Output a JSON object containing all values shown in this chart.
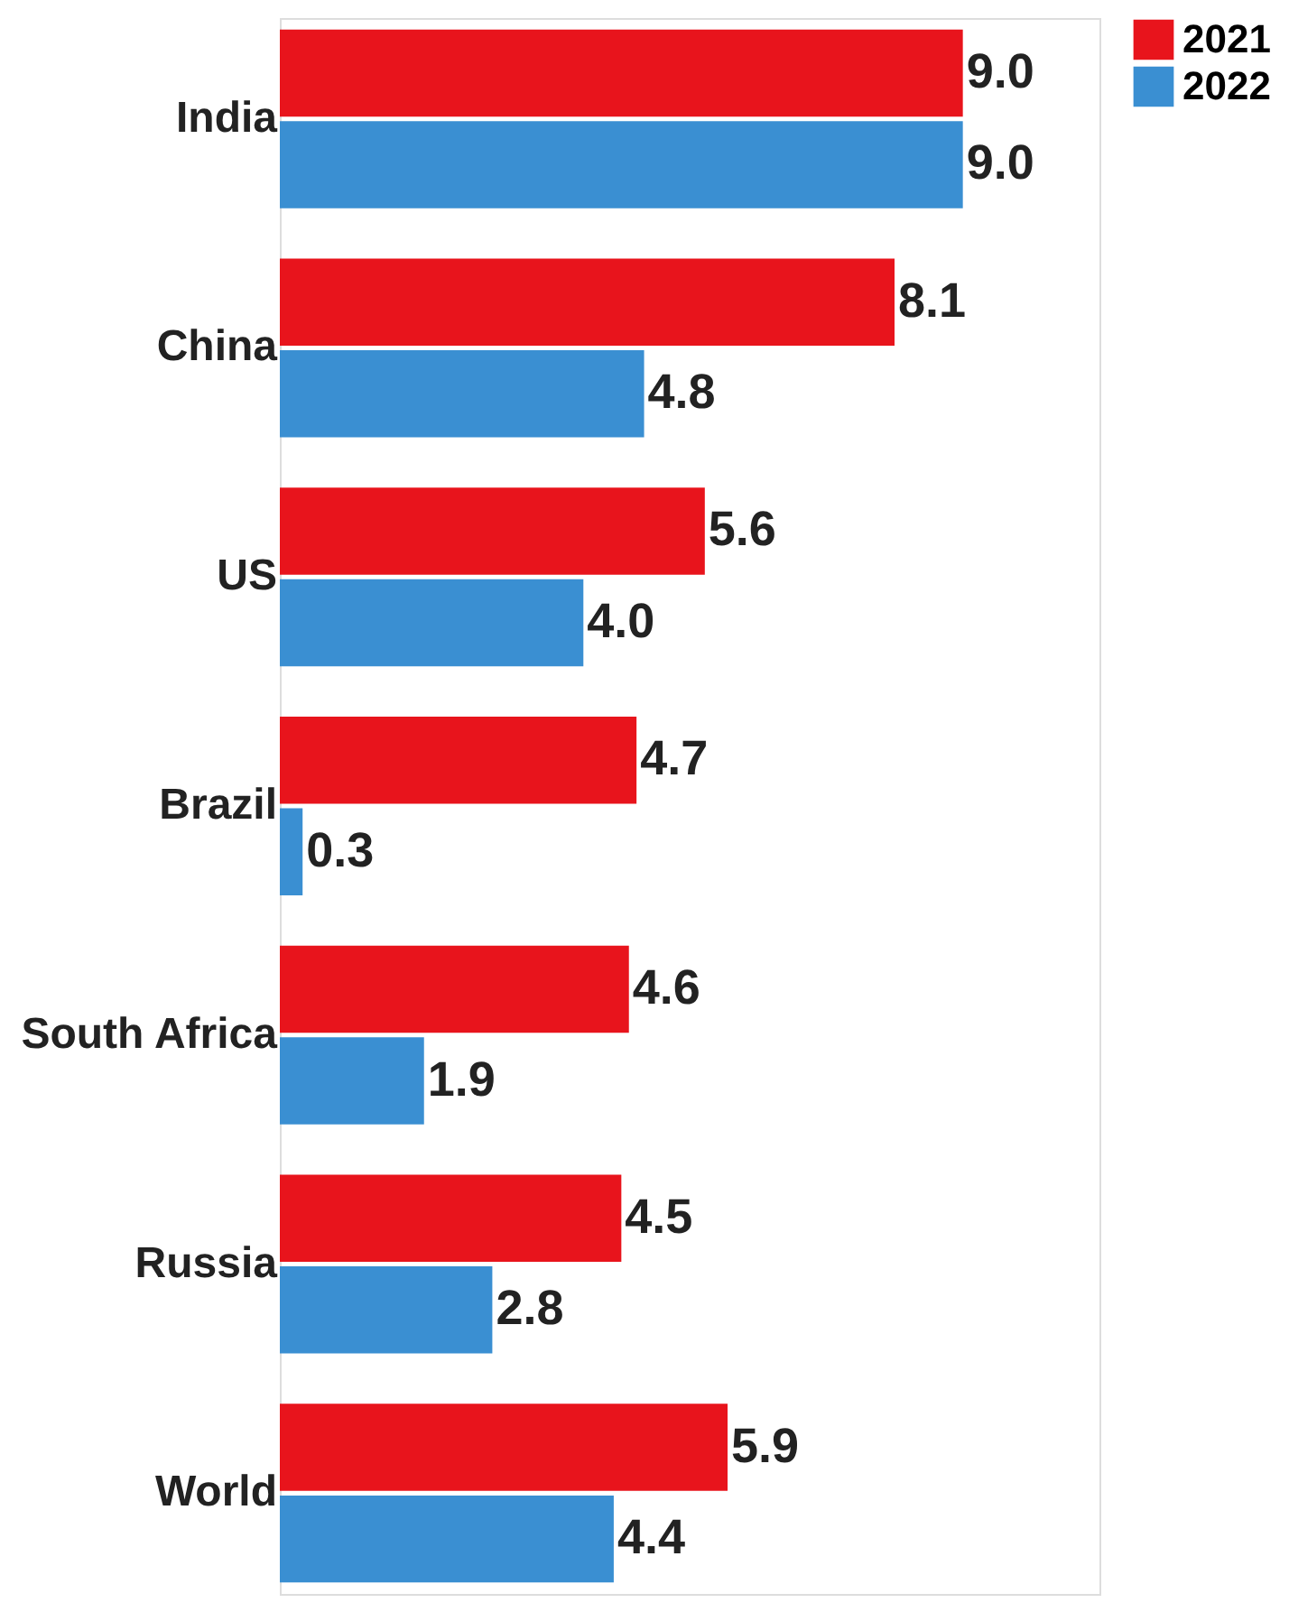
{
  "chart_data": {
    "type": "bar",
    "orientation": "horizontal",
    "categories": [
      "India",
      "China",
      "US",
      "Brazil",
      "South Africa",
      "Russia",
      "World"
    ],
    "series": [
      {
        "name": "2021",
        "color": "#e8141c",
        "values": [
          9.0,
          8.1,
          5.6,
          4.7,
          4.6,
          4.5,
          5.9
        ],
        "value_labels": [
          "9.0",
          "8.1",
          "5.6",
          "4.7",
          "4.6",
          "4.5",
          "5.9"
        ]
      },
      {
        "name": "2022",
        "color": "#3a8fd2",
        "values": [
          9.0,
          4.8,
          4.0,
          0.3,
          1.9,
          2.8,
          4.4
        ],
        "value_labels": [
          "9.0",
          "4.8",
          "4.0",
          "0.3",
          "1.9",
          "2.8",
          "4.4"
        ]
      }
    ],
    "legend": "right",
    "grid": false
  }
}
